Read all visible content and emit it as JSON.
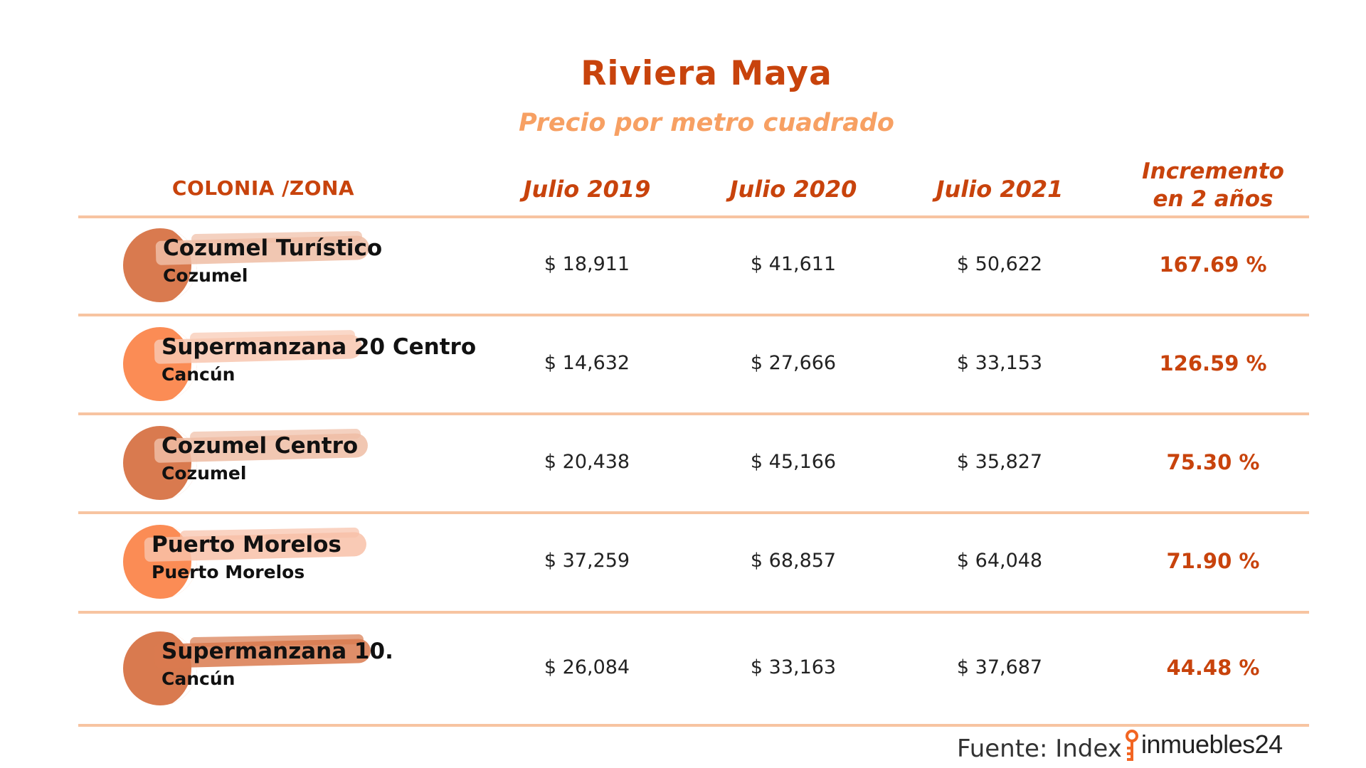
{
  "title": "Riviera Maya",
  "subtitle": "Precio por metro cuadrado",
  "headers": {
    "zone": "COLONIA /ZONA",
    "years": [
      "Julio 2019",
      "Julio 2020",
      "Julio 2021"
    ],
    "increment_line1": "Incremento",
    "increment_line2": "en 2 años"
  },
  "rows": [
    {
      "name": "Cozumel Turístico",
      "city": "Cozumel",
      "p2019": "$ 18,911",
      "p2020": "$ 41,611",
      "p2021": "$ 50,622",
      "increment": "167.69 %",
      "circle_color": "#d97a4f",
      "brush_color": "#efbda5"
    },
    {
      "name": "Supermanzana 20 Centro",
      "city": "Cancún",
      "p2019": "$ 14,632",
      "p2020": "$ 27,666",
      "p2021": "$ 33,153",
      "increment": "126.59 %",
      "circle_color": "#fb8c55",
      "brush_color": "#f8c7b0"
    },
    {
      "name": "Cozumel Centro",
      "city": "Cozumel",
      "p2019": "$ 20,438",
      "p2020": "$ 45,166",
      "p2021": "$ 35,827",
      "increment": "75.30 %",
      "circle_color": "#d97a4f",
      "brush_color": "#efbda5"
    },
    {
      "name": "Puerto Morelos",
      "city": "Puerto Morelos",
      "p2019": "$ 37,259",
      "p2020": "$ 68,857",
      "p2021": "$ 64,048",
      "increment": "71.90 %",
      "circle_color": "#fb8c55",
      "brush_color": "#f8c1a8"
    },
    {
      "name": "Supermanzana 10.",
      "city": "Cancún",
      "p2019": "$ 26,084",
      "p2020": "$ 33,163",
      "p2021": "$ 37,687",
      "increment": "44.48 %",
      "circle_color": "#d97a4f",
      "brush_color": "#d97a4f"
    }
  ],
  "chart_data": {
    "type": "table",
    "title": "Riviera Maya",
    "subtitle": "Precio por metro cuadrado",
    "columns": [
      "COLONIA /ZONA",
      "Julio 2019",
      "Julio 2020",
      "Julio 2021",
      "Incremento en 2 años"
    ],
    "rows": [
      {
        "zone": "Cozumel Turístico",
        "city": "Cozumel",
        "values": [
          18911,
          41611,
          50622
        ],
        "increment_pct": 167.69
      },
      {
        "zone": "Supermanzana 20 Centro",
        "city": "Cancún",
        "values": [
          14632,
          27666,
          33153
        ],
        "increment_pct": 126.59
      },
      {
        "zone": "Cozumel Centro",
        "city": "Cozumel",
        "values": [
          20438,
          45166,
          35827
        ],
        "increment_pct": 75.3
      },
      {
        "zone": "Puerto Morelos",
        "city": "Puerto Morelos",
        "values": [
          37259,
          68857,
          64048
        ],
        "increment_pct": 71.9
      },
      {
        "zone": "Supermanzana 10.",
        "city": "Cancún",
        "values": [
          26084,
          33163,
          37687
        ],
        "increment_pct": 44.48
      }
    ]
  },
  "source": {
    "label": "Fuente: Index",
    "logo_text": "inmuebles24",
    "logo_color": "#f26522"
  }
}
